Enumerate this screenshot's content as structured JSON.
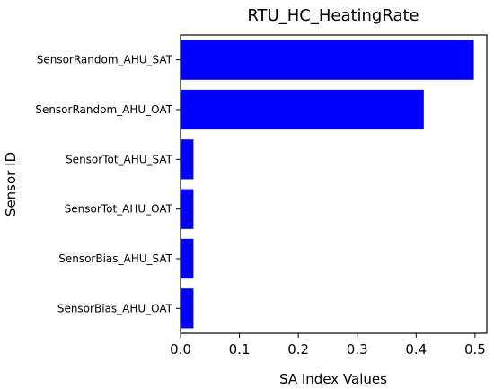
{
  "chart_data": {
    "type": "bar",
    "orientation": "horizontal",
    "title": "RTU_HC_HeatingRate",
    "xlabel": "SA Index Values",
    "ylabel": "Sensor ID",
    "categories": [
      "SensorRandom_AHU_SAT",
      "SensorRandom_AHU_OAT",
      "SensorTot_AHU_SAT",
      "SensorTot_AHU_OAT",
      "SensorBias_AHU_SAT",
      "SensorBias_AHU_OAT"
    ],
    "values": [
      0.498,
      0.413,
      0.022,
      0.022,
      0.022,
      0.022
    ],
    "xlim": [
      0,
      0.52
    ],
    "xticks": [
      0.0,
      0.1,
      0.2,
      0.3,
      0.4,
      0.5
    ],
    "xtick_labels": [
      "0.0",
      "0.1",
      "0.2",
      "0.3",
      "0.4",
      "0.5"
    ],
    "bar_color": "#0000ff",
    "grid": false,
    "legend": false
  }
}
